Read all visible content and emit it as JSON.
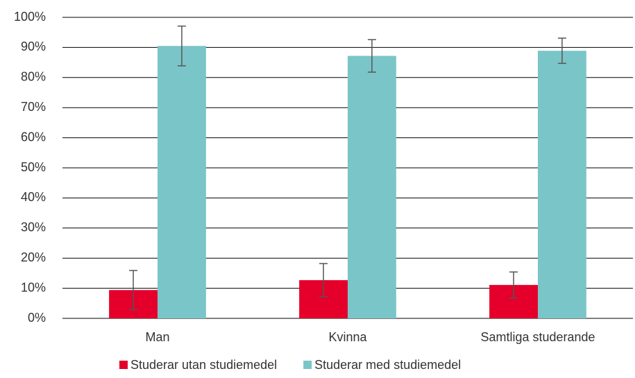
{
  "chart_data": {
    "type": "bar",
    "categories": [
      "Man",
      "Kvinna",
      "Samtliga studerande"
    ],
    "series": [
      {
        "name": "Studerar utan studiemedel",
        "color": "#e4002b",
        "values": [
          9.4,
          12.7,
          11.1
        ],
        "errors": [
          6.5,
          5.5,
          4.3
        ]
      },
      {
        "name": "Studerar med studiemedel",
        "color": "#7ac5c8",
        "values": [
          90.5,
          87.2,
          88.9
        ],
        "errors": [
          6.6,
          5.4,
          4.2
        ]
      }
    ],
    "ylim": [
      0,
      100
    ],
    "yticks": [
      {
        "value": 0,
        "label": "0%"
      },
      {
        "value": 10,
        "label": "10%"
      },
      {
        "value": 20,
        "label": "20%"
      },
      {
        "value": 30,
        "label": "30%"
      },
      {
        "value": 40,
        "label": "40%"
      },
      {
        "value": 50,
        "label": "50%"
      },
      {
        "value": 60,
        "label": "60%"
      },
      {
        "value": 70,
        "label": "70%"
      },
      {
        "value": 80,
        "label": "80%"
      },
      {
        "value": 90,
        "label": "90%"
      },
      {
        "value": 100,
        "label": "100%"
      }
    ],
    "grid": true,
    "legend": "bottom"
  }
}
